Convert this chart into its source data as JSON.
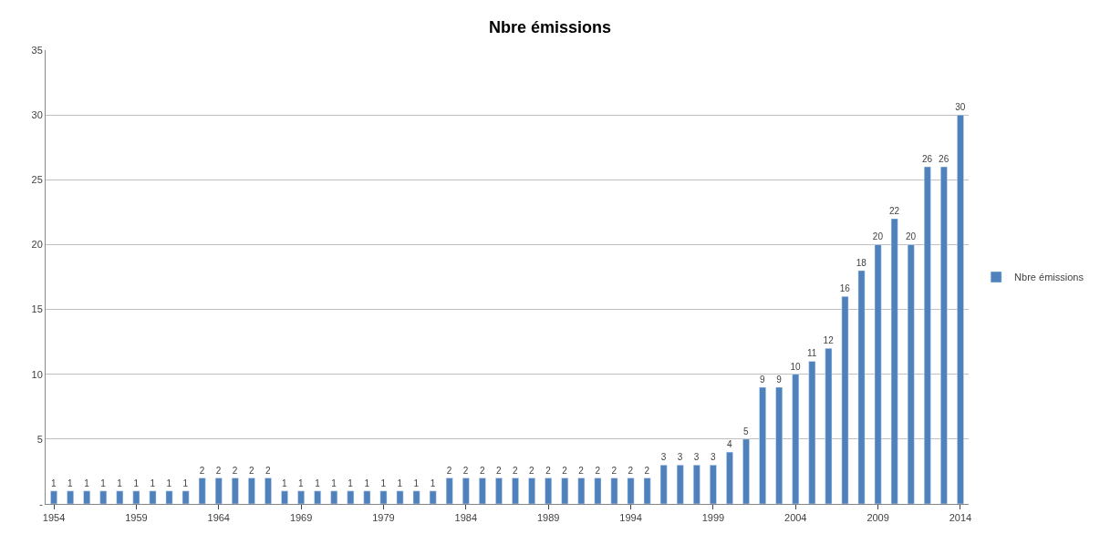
{
  "chart_data": {
    "type": "bar",
    "title": "Nbre émissions",
    "categories": [
      "1954",
      null,
      null,
      null,
      null,
      "1959",
      null,
      null,
      null,
      null,
      "1964",
      null,
      null,
      null,
      null,
      "1969",
      null,
      null,
      null,
      null,
      "1979",
      null,
      null,
      null,
      null,
      "1984",
      null,
      null,
      null,
      null,
      "1989",
      null,
      null,
      null,
      null,
      "1994",
      null,
      null,
      null,
      null,
      "1999",
      null,
      null,
      null,
      null,
      "2004",
      null,
      null,
      null,
      null,
      "2009",
      null,
      null,
      null,
      null,
      "2014"
    ],
    "series": [
      {
        "name": "Nbre émissions",
        "color": "#4f81bd",
        "values": [
          1,
          1,
          1,
          1,
          1,
          1,
          1,
          1,
          1,
          2,
          2,
          2,
          2,
          2,
          1,
          1,
          1,
          1,
          1,
          1,
          1,
          1,
          1,
          1,
          2,
          2,
          2,
          2,
          2,
          2,
          2,
          2,
          2,
          2,
          2,
          2,
          2,
          3,
          3,
          3,
          3,
          4,
          5,
          9,
          9,
          10,
          11,
          12,
          16,
          18,
          20,
          22,
          20,
          26,
          26,
          30
        ]
      }
    ],
    "ylim": [
      0,
      35
    ],
    "yticks": [
      {
        "value": 0,
        "label": "-"
      },
      5,
      10,
      15,
      20,
      25,
      30,
      35
    ],
    "grid": "y",
    "legend": "right",
    "data_labels": true
  }
}
